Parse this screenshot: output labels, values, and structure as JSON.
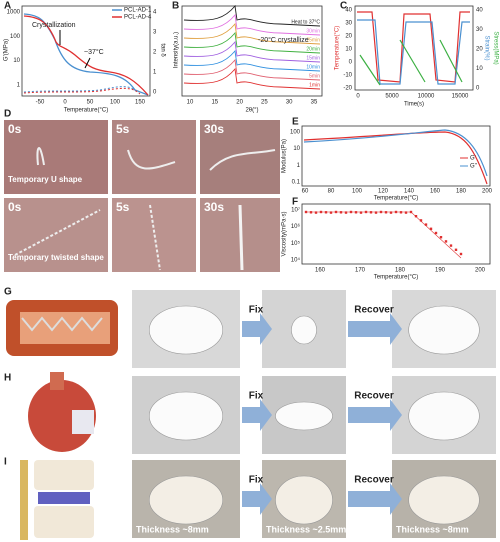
{
  "panels": {
    "a": {
      "label": "A",
      "y_label": "G'(MPa)",
      "y2_label": "tan δ",
      "x_label": "Temperature(°C)",
      "yticks": [
        "1000",
        "100",
        "10",
        "1"
      ],
      "y2ticks": [
        "4",
        "3",
        "2",
        "1",
        "0"
      ],
      "xticks": [
        "-50",
        "0",
        "50",
        "100",
        "150"
      ],
      "legend": [
        "PCL-AD-1",
        "PCL-AD-4"
      ],
      "annotations": [
        "Crystallization",
        "~37°C"
      ]
    },
    "b": {
      "label": "B",
      "y_label": "Intensity(a.u.)",
      "x_label": "2θ(°)",
      "xticks": [
        "10",
        "15",
        "20",
        "25",
        "30",
        "35"
      ],
      "annotation": "-20°C crystallize",
      "curve_labels": [
        "Heat to 37°C",
        "30min",
        "25min",
        "20min",
        "15min",
        "10min",
        "5min",
        "1min"
      ]
    },
    "c": {
      "label": "C",
      "y_label": "Temperature(°C)",
      "y2_label": "Strain(%)",
      "y3_label": "Stress(MPa)",
      "x_label": "Time(s)",
      "yticks": [
        "40",
        "30",
        "20",
        "10",
        "0",
        "-10",
        "-20"
      ],
      "y2ticks": [
        "40",
        "30",
        "20",
        "10",
        "0"
      ],
      "xticks": [
        "0",
        "5000",
        "10000",
        "15000"
      ]
    },
    "d": {
      "label": "D",
      "photos": [
        {
          "time": "0s",
          "caption": "Temporary U shape"
        },
        {
          "time": "5s"
        },
        {
          "time": "30s"
        },
        {
          "time": "0s",
          "caption": "Temporary twisted shape"
        },
        {
          "time": "5s"
        },
        {
          "time": "30s"
        }
      ]
    },
    "e": {
      "label": "E",
      "y_label": "Modulus(Pa)",
      "x_label": "Temperature(°C)",
      "yticks": [
        "100",
        "10",
        "1",
        "0.1"
      ],
      "xticks": [
        "60",
        "80",
        "100",
        "120",
        "140",
        "160",
        "180",
        "200"
      ],
      "legend": [
        "G'",
        "G''"
      ]
    },
    "f": {
      "label": "F",
      "y_label": "Viscosity(mPa·s)",
      "x_label": "Temperature(°C)",
      "yticks": [
        "10⁷",
        "10⁶",
        "10⁵",
        "10⁴"
      ],
      "xticks": [
        "160",
        "170",
        "180",
        "190",
        "200"
      ]
    },
    "g": {
      "label": "G",
      "steps": [
        "Fix",
        "Recover"
      ]
    },
    "h": {
      "label": "H",
      "steps": [
        "Fix",
        "Recover"
      ]
    },
    "i": {
      "label": "I",
      "steps": [
        "Fix",
        "Recover"
      ],
      "captions": [
        "Thickness ~8mm",
        "Thickness ~2.5mm",
        "Thickness ~8mm"
      ]
    }
  }
}
